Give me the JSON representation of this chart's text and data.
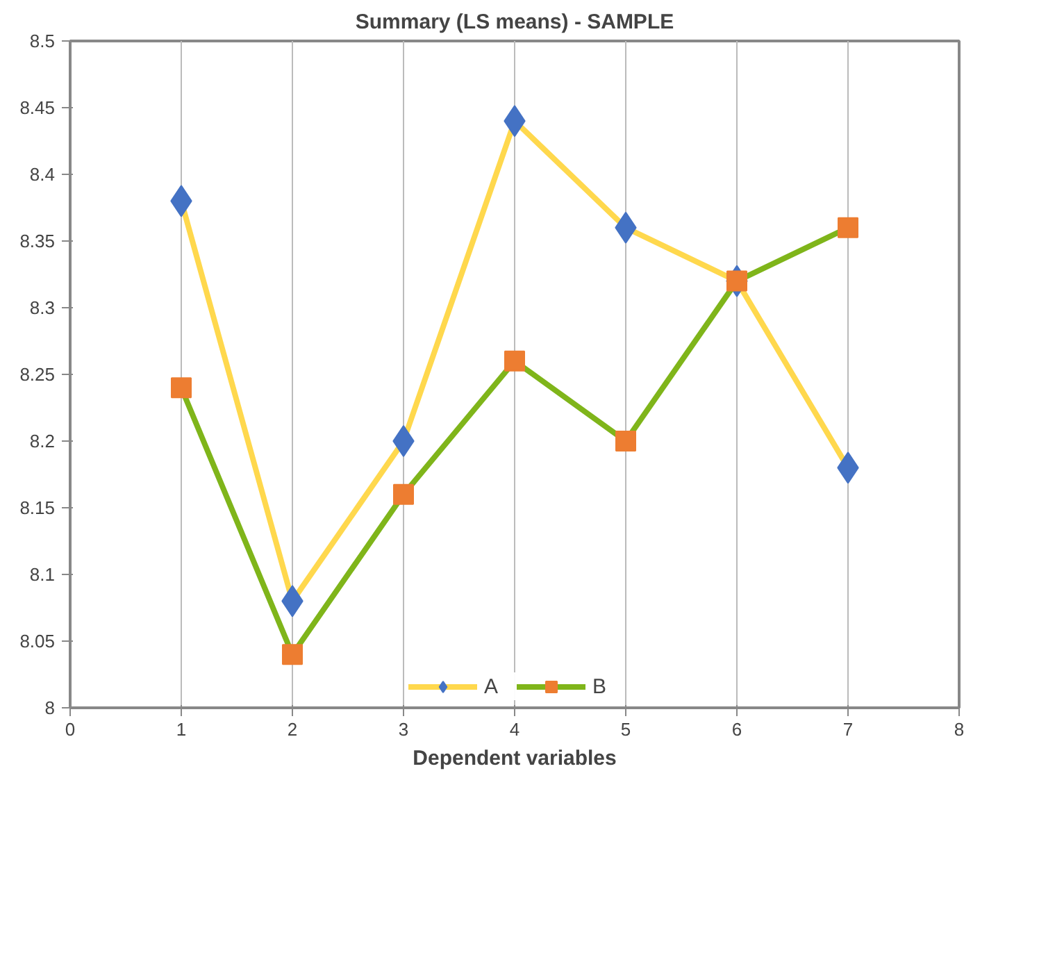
{
  "chart_data": {
    "type": "line",
    "title": "Summary (LS means) - SAMPLE",
    "xlabel": "Dependent variables",
    "x": [
      1,
      2,
      3,
      4,
      5,
      6,
      7
    ],
    "series": [
      {
        "name": "A",
        "color": "#ffd84d",
        "colors": [
          "#4472c4",
          "#4472c4",
          "#4472c4",
          "#4472c4",
          "#4472c4",
          "#4472c4",
          "#4472c4"
        ],
        "marker": "diamond",
        "values": [
          8.38,
          8.08,
          8.2,
          8.44,
          8.36,
          8.32,
          8.18
        ]
      },
      {
        "name": "B",
        "color": "#7fb51a",
        "colors": [
          "#ed7d31",
          "#ed7d31",
          "#ed7d31",
          "#ed7d31",
          "#ed7d31",
          "#ed7d31",
          "#ed7d31"
        ],
        "marker": "square",
        "values": [
          8.24,
          8.04,
          8.16,
          8.26,
          8.2,
          8.32,
          8.36
        ]
      }
    ],
    "xlim": [
      0,
      8
    ],
    "xticks": [
      0,
      1,
      2,
      3,
      4,
      5,
      6,
      7,
      8
    ],
    "ylim": [
      8,
      8.5
    ],
    "yticks": [
      8,
      8.05,
      8.1,
      8.15,
      8.2,
      8.25,
      8.3,
      8.35,
      8.4,
      8.45,
      8.5
    ],
    "grid": "x",
    "legend": "bottom",
    "line_style": "solid"
  }
}
